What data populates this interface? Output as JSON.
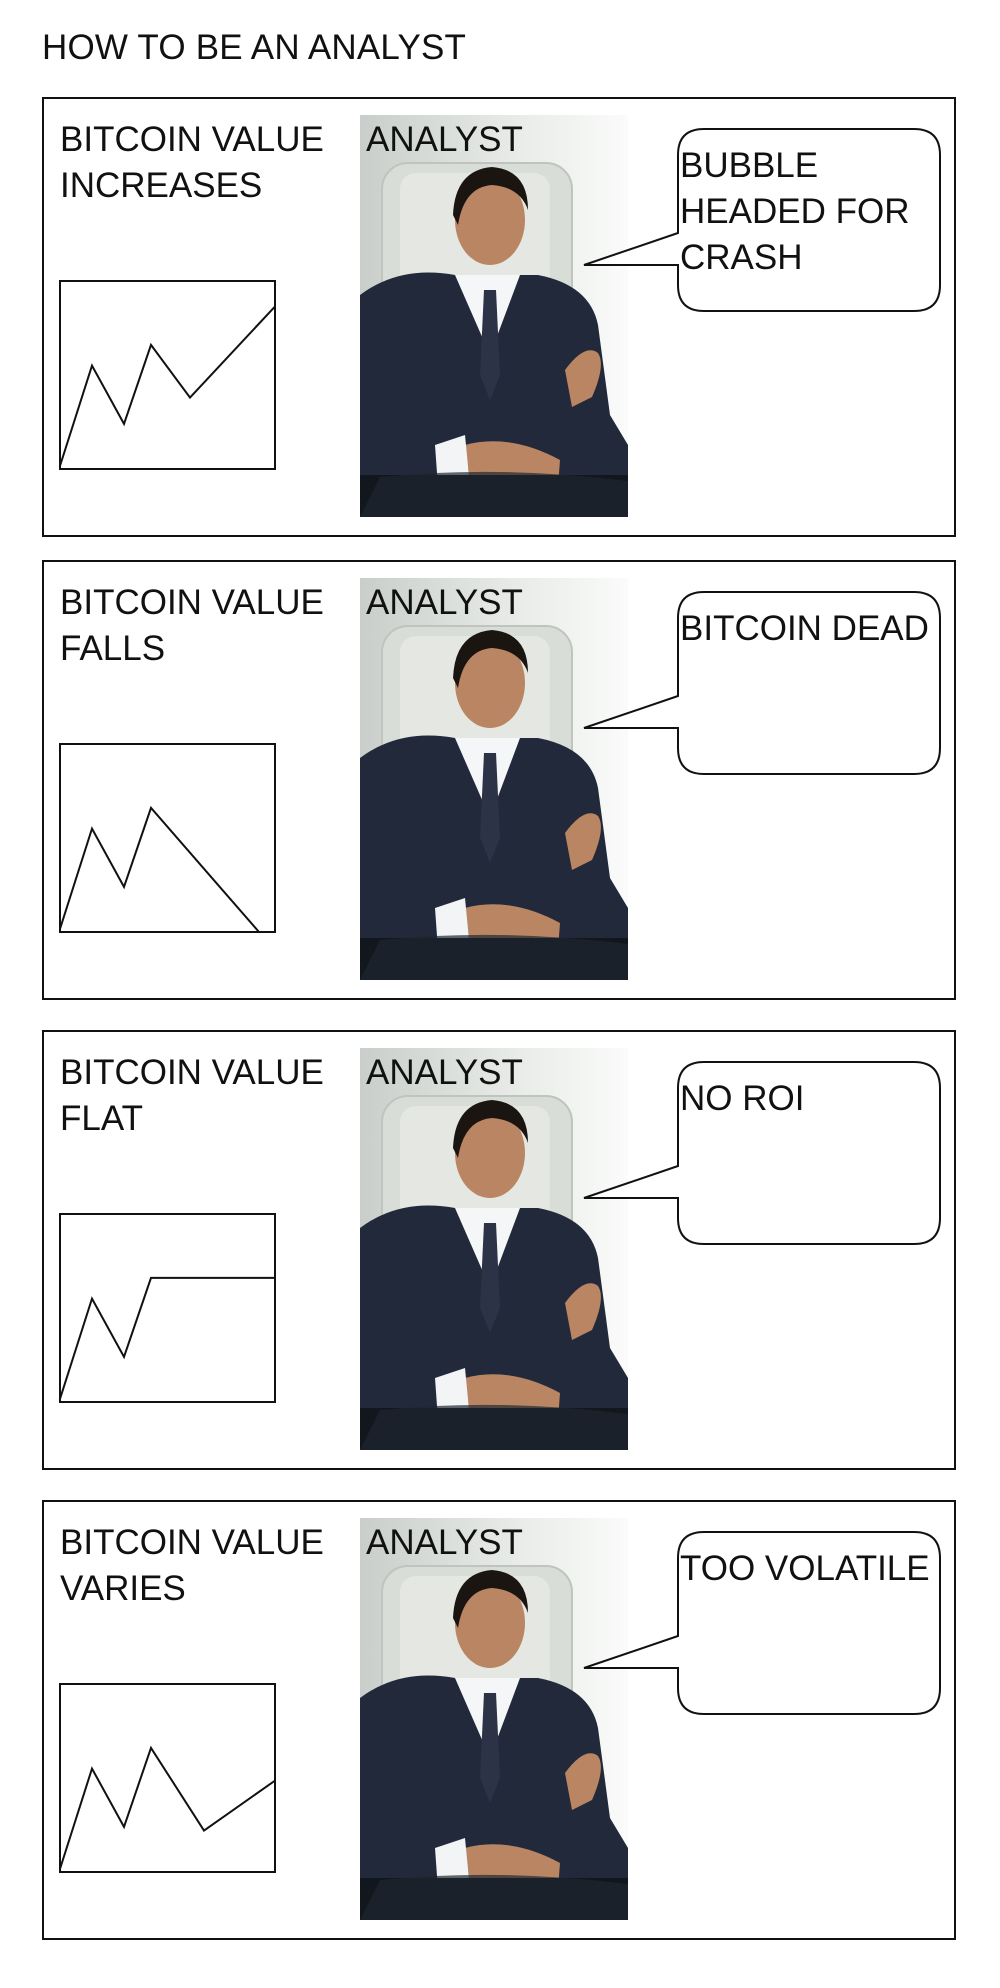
{
  "title": "HOW TO BE AN ANALYST",
  "panels": [
    {
      "caption": "BITCOIN VALUE\nINCREASES",
      "photo_label": "ANALYST",
      "speech": "BUBBLE\nHEADED FOR\nCRASH",
      "trend": [
        0.0,
        0.55,
        0.24,
        0.66,
        0.38,
        0.87
      ]
    },
    {
      "caption": "BITCOIN VALUE\nFALLS",
      "photo_label": "ANALYST",
      "speech": "BITCOIN DEAD",
      "trend": [
        0.0,
        0.55,
        0.24,
        0.66,
        0.0
      ]
    },
    {
      "caption": "BITCOIN VALUE\nFLAT",
      "photo_label": "ANALYST",
      "speech": "NO ROI",
      "trend": [
        0.0,
        0.55,
        0.24,
        0.66,
        0.66
      ]
    },
    {
      "caption": "BITCOIN VALUE\nVARIES",
      "photo_label": "ANALYST",
      "speech": "TOO VOLATILE",
      "trend": [
        0.0,
        0.55,
        0.24,
        0.66,
        0.22,
        0.49
      ]
    }
  ]
}
